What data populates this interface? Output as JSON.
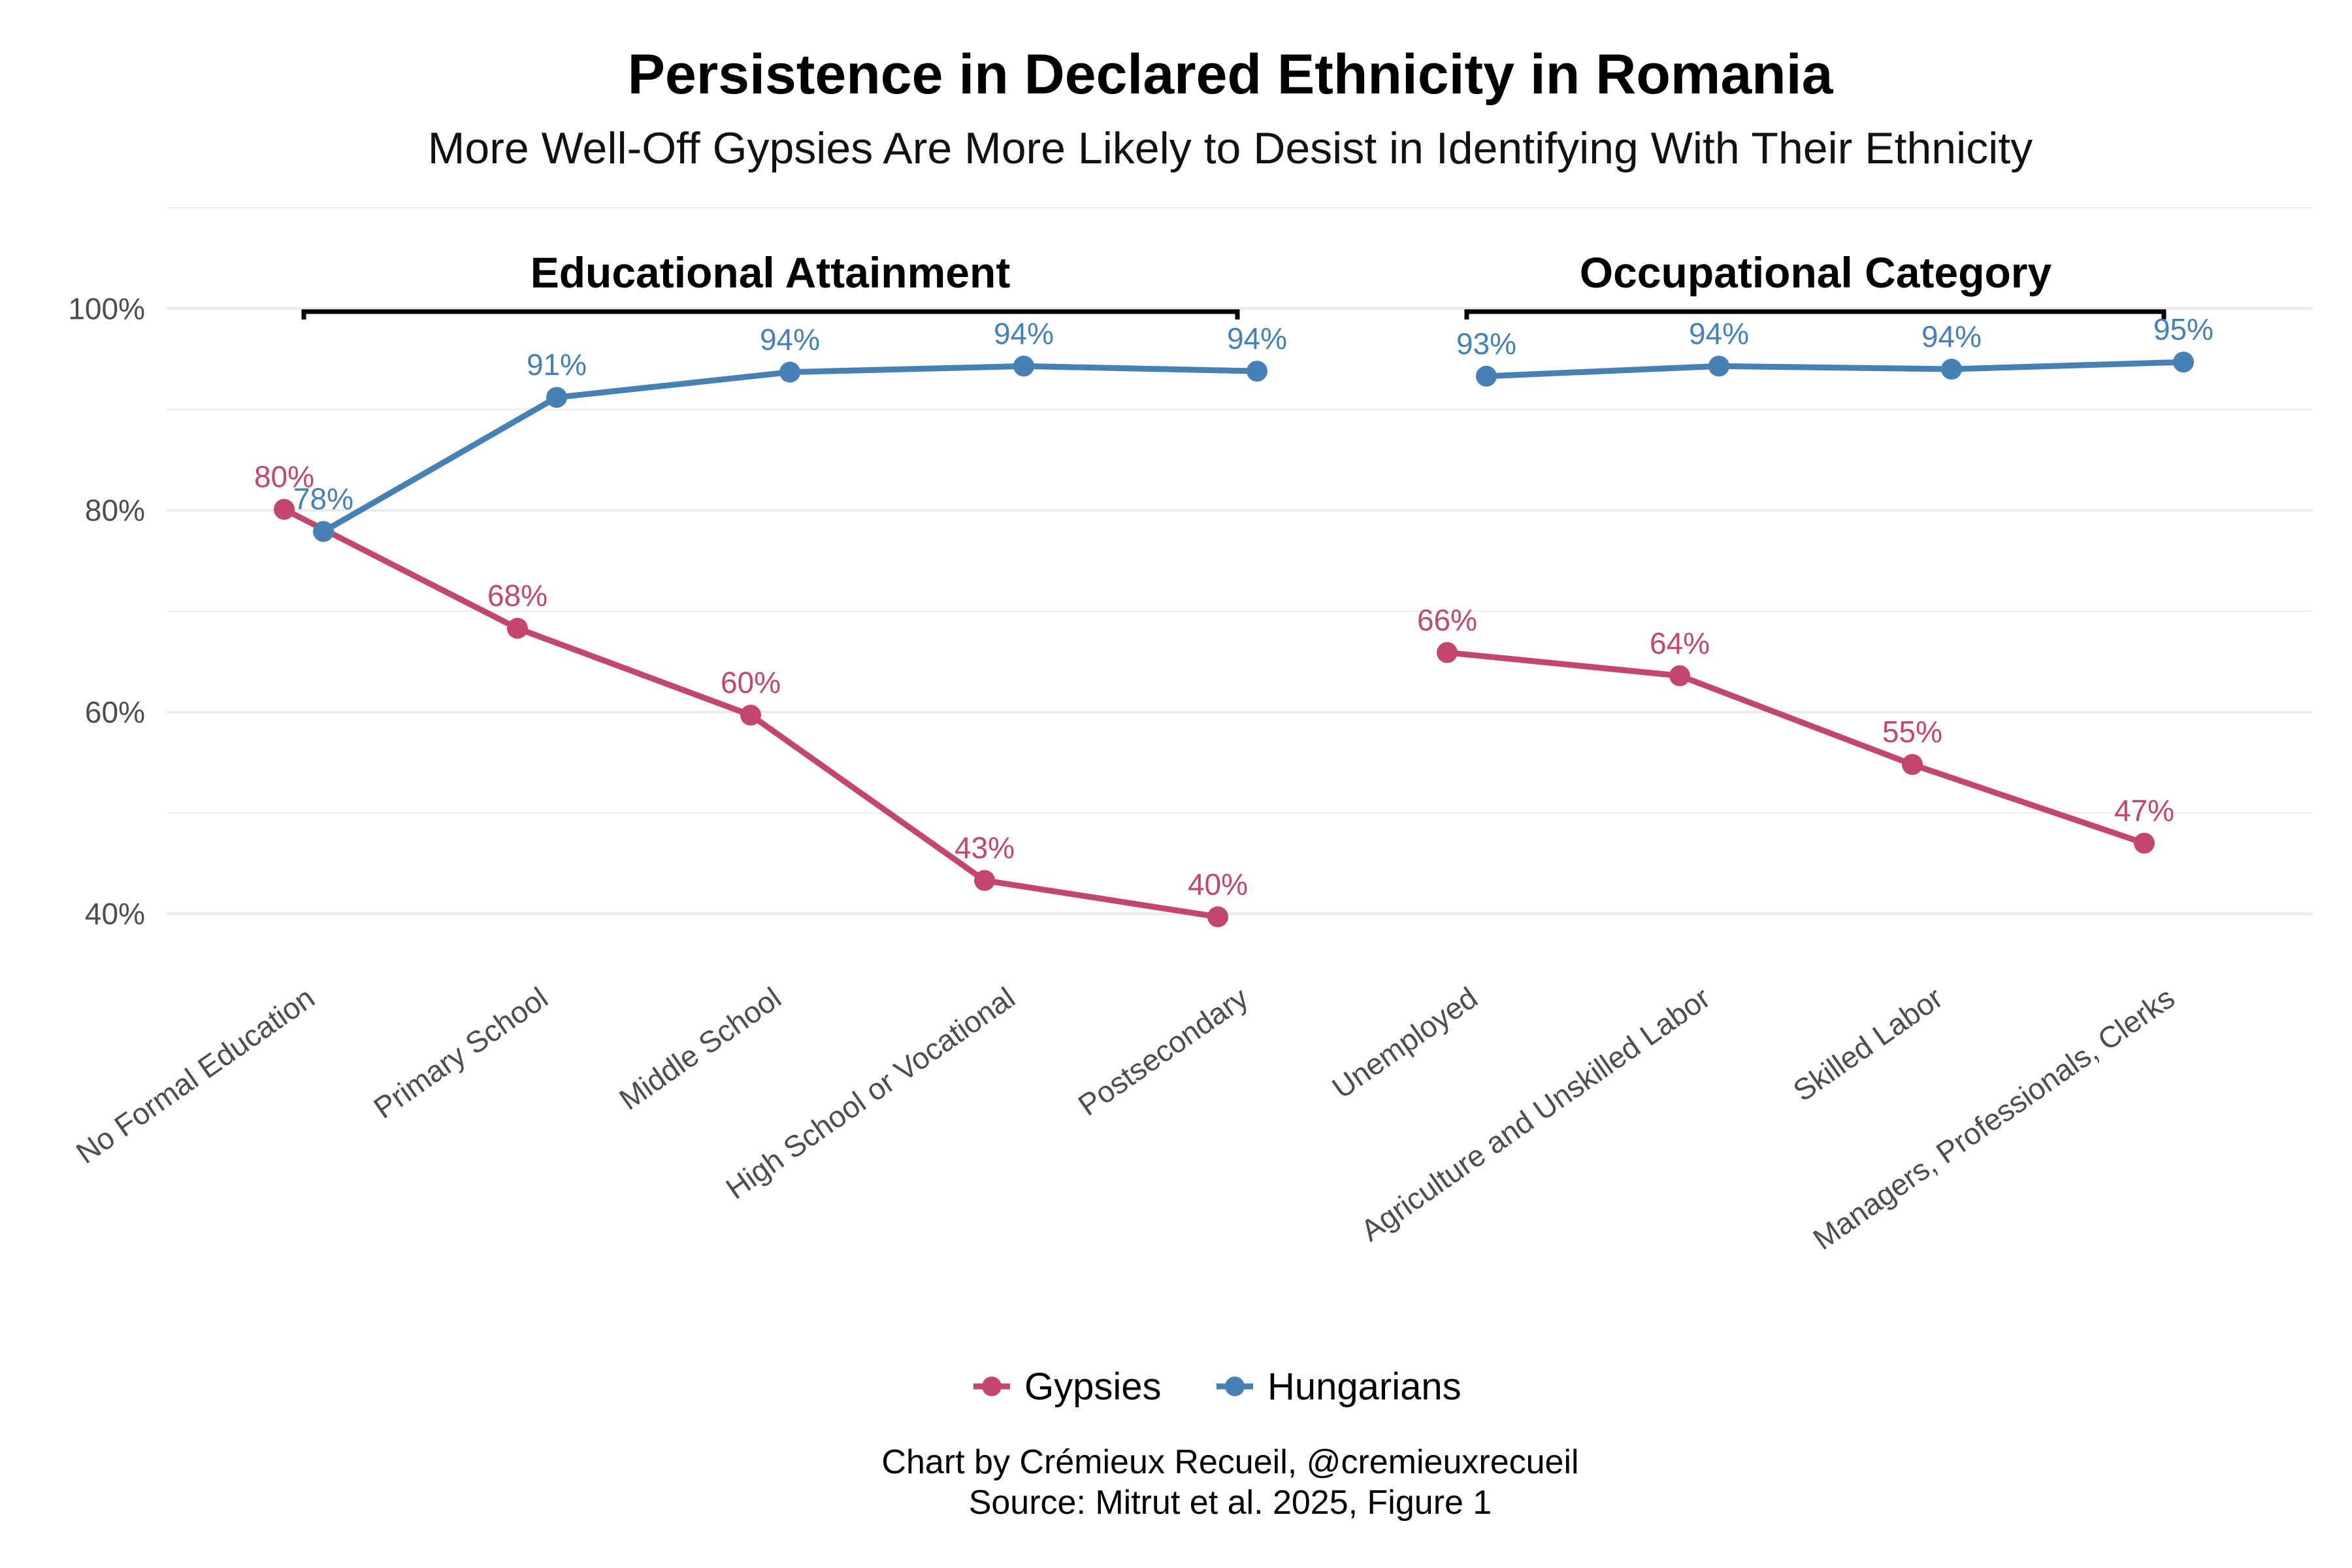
{
  "colors": {
    "gypsies": "#c2476b",
    "hungarians": "#4680b4",
    "grid": "#ebebeb",
    "bracket": "#000000"
  },
  "chart_data": {
    "type": "line",
    "title": "Persistence in Declared Ethnicity in Romania",
    "subtitle": "More Well-Off Gypsies Are More Likely to Desist in Identifying With Their Ethnicity",
    "xlabel": "",
    "ylabel": "",
    "ylim": [
      0.3,
      1.1
    ],
    "yticks": [
      0.4,
      0.6,
      0.8,
      1.0
    ],
    "ytick_labels": [
      "40%",
      "60%",
      "80%",
      "100%"
    ],
    "grid": true,
    "legend_position": "bottom",
    "groups": [
      {
        "label": "Educational Attainment",
        "categories": [
          "No Formal Education",
          "Primary School",
          "Middle School",
          "High School or Vocational",
          "Postsecondary"
        ],
        "series": [
          {
            "name": "Gypsies",
            "values": [
              0.801,
              0.683,
              0.597,
              0.433,
              0.397
            ],
            "labels": [
              "80%",
              "68%",
              "60%",
              "43%",
              "40%"
            ]
          },
          {
            "name": "Hungarians",
            "values": [
              0.779,
              0.912,
              0.937,
              0.943,
              0.938
            ],
            "labels": [
              "78%",
              "91%",
              "94%",
              "94%",
              "94%"
            ]
          }
        ]
      },
      {
        "label": "Occupational Category",
        "categories": [
          "Unemployed",
          "Agriculture and Unskilled Labor",
          "Skilled Labor",
          "Managers, Professionals, Clerks"
        ],
        "series": [
          {
            "name": "Gypsies",
            "values": [
              0.659,
              0.636,
              0.548,
              0.47
            ],
            "labels": [
              "66%",
              "64%",
              "55%",
              "47%"
            ]
          },
          {
            "name": "Hungarians",
            "values": [
              0.933,
              0.943,
              0.94,
              0.947
            ],
            "labels": [
              "93%",
              "94%",
              "94%",
              "95%"
            ]
          }
        ]
      }
    ],
    "legend": [
      "Gypsies",
      "Hungarians"
    ],
    "caption_lines": [
      "Chart by Crémieux Recueil, @cremieuxrecueil",
      "Source: Mitrut et al. 2025, Figure 1"
    ]
  }
}
